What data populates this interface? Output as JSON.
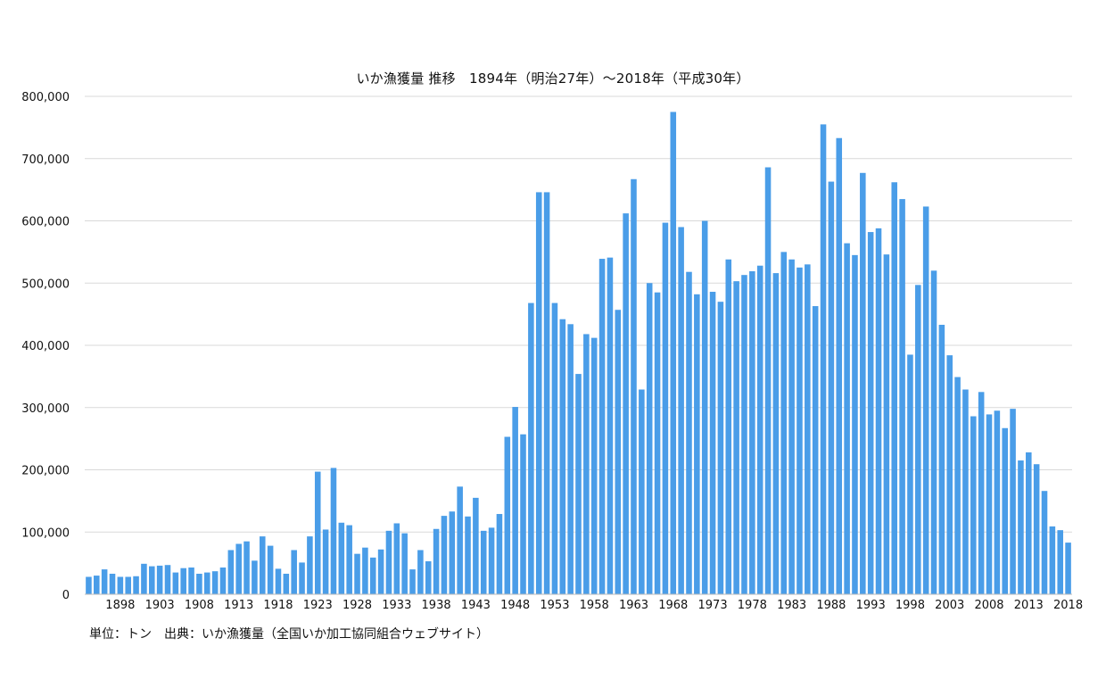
{
  "chart_data": {
    "type": "bar",
    "title": "いか漁獲量 推移　1894年（明治27年）〜2018年（平成30年）",
    "footnote": "単位：トン　出典：いか漁獲量（全国いか加工協同組合ウェブサイト）",
    "ylim": [
      0,
      800000
    ],
    "yticks": [
      0,
      100000,
      200000,
      300000,
      400000,
      500000,
      600000,
      700000,
      800000
    ],
    "ytick_labels": [
      "0",
      "100,000",
      "200,000",
      "300,000",
      "400,000",
      "500,000",
      "600,000",
      "700,000",
      "800,000"
    ],
    "xtick_labels": [
      "1898",
      "1903",
      "1908",
      "1913",
      "1918",
      "1923",
      "1928",
      "1933",
      "1938",
      "1943",
      "1948",
      "1953",
      "1958",
      "1963",
      "1968",
      "1973",
      "1978",
      "1983",
      "1988",
      "1993",
      "1998",
      "2003",
      "2008",
      "2013",
      "2018"
    ],
    "grid": true,
    "bar_color": "#4a9de8",
    "categories": [
      1894,
      1895,
      1896,
      1897,
      1898,
      1899,
      1900,
      1901,
      1902,
      1903,
      1904,
      1905,
      1906,
      1907,
      1908,
      1909,
      1910,
      1911,
      1912,
      1913,
      1914,
      1915,
      1916,
      1917,
      1918,
      1919,
      1920,
      1921,
      1922,
      1923,
      1924,
      1925,
      1926,
      1927,
      1928,
      1929,
      1930,
      1931,
      1932,
      1933,
      1934,
      1935,
      1936,
      1937,
      1938,
      1939,
      1940,
      1941,
      1942,
      1943,
      1944,
      1945,
      1946,
      1947,
      1948,
      1949,
      1950,
      1951,
      1952,
      1953,
      1954,
      1955,
      1956,
      1957,
      1958,
      1959,
      1960,
      1961,
      1962,
      1963,
      1964,
      1965,
      1966,
      1967,
      1968,
      1969,
      1970,
      1971,
      1972,
      1973,
      1974,
      1975,
      1976,
      1977,
      1978,
      1979,
      1980,
      1981,
      1982,
      1983,
      1984,
      1985,
      1986,
      1987,
      1988,
      1989,
      1990,
      1991,
      1992,
      1993,
      1994,
      1995,
      1996,
      1997,
      1998,
      1999,
      2000,
      2001,
      2002,
      2003,
      2004,
      2005,
      2006,
      2007,
      2008,
      2009,
      2010,
      2011,
      2012,
      2013,
      2014,
      2015,
      2016,
      2017,
      2018
    ],
    "values": [
      28000,
      30000,
      40000,
      33000,
      28000,
      28000,
      29000,
      49000,
      45000,
      46000,
      47000,
      35000,
      42000,
      43000,
      33000,
      35000,
      37000,
      43000,
      71000,
      81000,
      85000,
      54000,
      93000,
      78000,
      41000,
      33000,
      71000,
      51000,
      93000,
      197000,
      104000,
      203000,
      115000,
      111000,
      65000,
      75000,
      59000,
      72000,
      102000,
      114000,
      98000,
      40000,
      71000,
      53000,
      105000,
      126000,
      133000,
      173000,
      125000,
      155000,
      102000,
      107000,
      129000,
      253000,
      301000,
      257000,
      468000,
      646000,
      646000,
      468000,
      442000,
      434000,
      354000,
      418000,
      412000,
      539000,
      541000,
      457000,
      612000,
      667000,
      329000,
      500000,
      485000,
      597000,
      775000,
      590000,
      518000,
      482000,
      600000,
      486000,
      470000,
      538000,
      503000,
      513000,
      519000,
      528000,
      686000,
      516000,
      550000,
      538000,
      525000,
      530000,
      463000,
      755000,
      663000,
      733000,
      564000,
      545000,
      677000,
      582000,
      588000,
      546000,
      662000,
      635000,
      385000,
      497000,
      623000,
      520000,
      433000,
      384000,
      349000,
      329000,
      286000,
      325000,
      289000,
      295000,
      267000,
      298000,
      215000,
      228000,
      209000,
      166000,
      109000,
      103000,
      83000
    ]
  }
}
